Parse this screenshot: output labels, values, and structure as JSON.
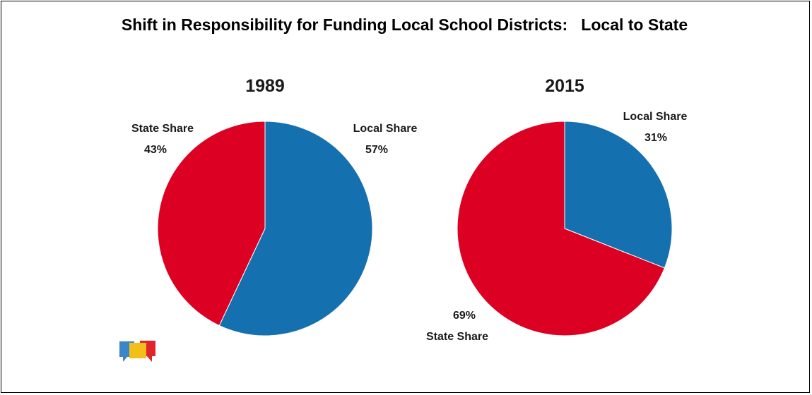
{
  "title": "Shift in Responsibility for Funding Local School Districts:   Local to State",
  "colors": {
    "local": "#1470AE",
    "state": "#DC0022",
    "logo_blue": "#3A86C8",
    "logo_yellow": "#F2BE1A",
    "logo_red": "#E0242B"
  },
  "logo": {
    "icon": "speech-bubbles-logo-icon"
  },
  "chart_data": [
    {
      "type": "pie",
      "title": "1989",
      "slices": [
        {
          "label": "Local Share",
          "value": 57,
          "value_label": "57%",
          "color": "#1470AE"
        },
        {
          "label": "State Share",
          "value": 43,
          "value_label": "43%",
          "color": "#DC0022"
        }
      ],
      "start_angle_deg": 0,
      "direction": "clockwise",
      "label_placement": "outside"
    },
    {
      "type": "pie",
      "title": "2015",
      "slices": [
        {
          "label": "Local Share",
          "value": 31,
          "value_label": "31%",
          "color": "#1470AE"
        },
        {
          "label": "State Share",
          "value": 69,
          "value_label": "69%",
          "color": "#DC0022"
        }
      ],
      "start_angle_deg": 0,
      "direction": "clockwise",
      "label_placement": "outside"
    }
  ]
}
